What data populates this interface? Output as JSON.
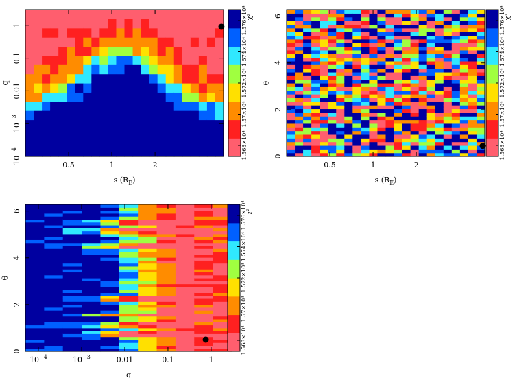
{
  "chart_data": [
    {
      "type": "heatmap",
      "id": "panel-s-q",
      "xlabel": "s (R",
      "xlabel_sub": "E",
      "xlabel_close": ")",
      "ylabel": "q",
      "x_scale": "log",
      "y_scale": "log",
      "xlim": [
        0.25,
        6.0
      ],
      "ylim": [
        0.0001,
        3.0
      ],
      "x_ticks": [
        {
          "v": 0.5,
          "label": "0.5"
        },
        {
          "v": 1,
          "label": "1"
        },
        {
          "v": 2,
          "label": "2"
        }
      ],
      "y_ticks": [
        {
          "v": 0.0001,
          "label": "10",
          "sup": "−4"
        },
        {
          "v": 0.001,
          "label": "10",
          "sup": "−3"
        },
        {
          "v": 0.01,
          "label": "0.01"
        },
        {
          "v": 0.1,
          "label": "0.1"
        },
        {
          "v": 1,
          "label": "1"
        }
      ],
      "best_fit": {
        "x": 5.8,
        "y": 0.9
      },
      "grid_size": [
        24,
        16
      ],
      "colorbar": {
        "title": "χ²",
        "labels": [
          "1.568×10⁴",
          "1.57×10⁴",
          "1.572×10⁴",
          "1.574×10⁴",
          "1.576×10⁴"
        ],
        "min": 15680,
        "max": 15760
      }
    },
    {
      "type": "heatmap",
      "id": "panel-s-theta",
      "xlabel": "s (R",
      "xlabel_sub": "E",
      "xlabel_close": ")",
      "ylabel": "θ",
      "x_scale": "log",
      "y_scale": "linear",
      "xlim": [
        0.25,
        6.0
      ],
      "ylim": [
        0,
        6.283
      ],
      "x_ticks": [
        {
          "v": 0.5,
          "label": "0.5"
        },
        {
          "v": 1,
          "label": "1"
        },
        {
          "v": 2,
          "label": "2"
        }
      ],
      "y_ticks": [
        {
          "v": 0,
          "label": "0"
        },
        {
          "v": 2,
          "label": "2"
        },
        {
          "v": 4,
          "label": "4"
        },
        {
          "v": 6,
          "label": "6"
        }
      ],
      "best_fit": {
        "x": 5.8,
        "y": 0.45
      },
      "grid_size": [
        24,
        40
      ],
      "colorbar": {
        "title": "χ²",
        "labels": [
          "1.568×10⁴",
          "1.57×10⁴",
          "1.572×10⁴",
          "1.574×10⁴",
          "1.576×10⁴"
        ],
        "min": 15680,
        "max": 15760
      }
    },
    {
      "type": "heatmap",
      "id": "panel-q-theta",
      "xlabel": "q",
      "ylabel": "θ",
      "x_scale": "log",
      "y_scale": "linear",
      "xlim": [
        5e-05,
        3.0
      ],
      "ylim": [
        0,
        6.283
      ],
      "x_ticks": [
        {
          "v": 0.0001,
          "label": "10",
          "sup": "−4"
        },
        {
          "v": 0.001,
          "label": "10",
          "sup": "−3"
        },
        {
          "v": 0.01,
          "label": "0.01"
        },
        {
          "v": 0.1,
          "label": "0.1"
        },
        {
          "v": 1,
          "label": "1"
        }
      ],
      "y_ticks": [
        {
          "v": 0,
          "label": "0"
        },
        {
          "v": 2,
          "label": "2"
        },
        {
          "v": 4,
          "label": "4"
        },
        {
          "v": 6,
          "label": "6"
        }
      ],
      "best_fit": {
        "x": 0.75,
        "y": 0.5
      },
      "grid_size": [
        11,
        50
      ],
      "colorbar": {
        "title": "χ²",
        "labels": [
          "1.568×10⁴",
          "1.57×10⁴",
          "1.572×10⁴",
          "1.574×10⁴",
          "1.576×10⁴"
        ],
        "min": 15680,
        "max": 15760
      }
    }
  ],
  "colormap": [
    "#ff5e6e",
    "#ff2020",
    "#ff8c00",
    "#ffe000",
    "#a0ff40",
    "#30e8ff",
    "#0060ff",
    "#0000a0"
  ]
}
